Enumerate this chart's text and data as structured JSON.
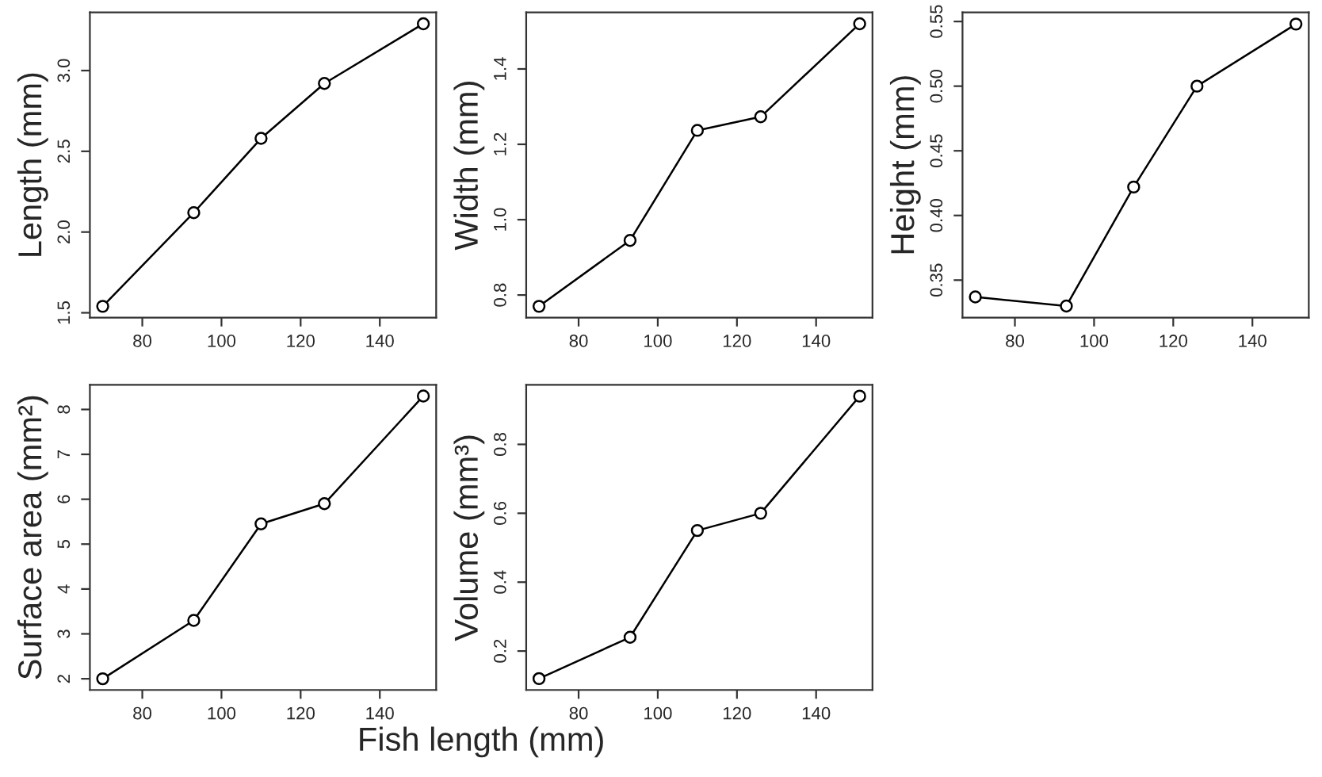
{
  "chart_data": [
    {
      "type": "line",
      "ylabel": "Length (mm)",
      "x": [
        70,
        93,
        110,
        126,
        151
      ],
      "series": [
        {
          "color": "#000000",
          "values": [
            1.54,
            2.12,
            2.58,
            2.92,
            3.29
          ]
        }
      ],
      "xlim": [
        66.76,
        154.24
      ],
      "ylim": [
        1.47,
        3.36
      ],
      "xticks": [
        80,
        100,
        120,
        140
      ],
      "yticks": [
        1.5,
        {
          "value": 2,
          "label": "2.0"
        },
        2.5,
        {
          "value": 3,
          "label": "3.0"
        }
      ],
      "marker": "circle",
      "line_style": "solid",
      "grid": false,
      "legend": false
    },
    {
      "type": "line",
      "ylabel": "Width (mm)",
      "x": [
        70,
        93,
        110,
        126,
        151
      ],
      "series": [
        {
          "color": "#000000",
          "values": [
            0.77,
            0.945,
            1.237,
            1.273,
            1.52
          ]
        }
      ],
      "xlim": [
        66.76,
        154.24
      ],
      "ylim": [
        0.74,
        1.55
      ],
      "xticks": [
        80,
        100,
        120,
        140
      ],
      "yticks": [
        0.8,
        {
          "value": 1,
          "label": "1.0"
        },
        1.2,
        1.4
      ],
      "marker": "circle",
      "line_style": "solid",
      "grid": false,
      "legend": false
    },
    {
      "type": "line",
      "ylabel": "Height (mm)",
      "x": [
        70,
        93,
        110,
        126,
        151
      ],
      "series": [
        {
          "color": "#000000",
          "values": [
            0.337,
            0.33,
            0.422,
            0.5,
            0.548
          ]
        }
      ],
      "xlim": [
        66.76,
        154.24
      ],
      "ylim": [
        0.321,
        0.557
      ],
      "xticks": [
        80,
        100,
        120,
        140
      ],
      "yticks": [
        0.35,
        {
          "value": 0.4,
          "label": "0.40"
        },
        0.45,
        {
          "value": 0.5,
          "label": "0.50"
        },
        0.55
      ],
      "marker": "circle",
      "line_style": "solid",
      "grid": false,
      "legend": false
    },
    {
      "type": "line",
      "ylabel": "Surface area (mm²)",
      "x": [
        70,
        93,
        110,
        126,
        151
      ],
      "series": [
        {
          "color": "#000000",
          "values": [
            2.0,
            3.3,
            5.45,
            5.9,
            8.3
          ]
        }
      ],
      "xlim": [
        66.76,
        154.24
      ],
      "ylim": [
        1.75,
        8.55
      ],
      "xticks": [
        80,
        100,
        120,
        140
      ],
      "yticks": [
        2,
        3,
        4,
        5,
        6,
        7,
        8
      ],
      "marker": "circle",
      "line_style": "solid",
      "grid": false,
      "legend": false
    },
    {
      "type": "line",
      "ylabel": "Volume (mm³)",
      "xlabel": "Fish length (mm)",
      "x": [
        70,
        93,
        110,
        126,
        151
      ],
      "series": [
        {
          "color": "#000000",
          "values": [
            0.12,
            0.24,
            0.55,
            0.6,
            0.94
          ]
        }
      ],
      "xlim": [
        66.76,
        154.24
      ],
      "ylim": [
        0.087,
        0.973
      ],
      "xticks": [
        80,
        100,
        120,
        140
      ],
      "yticks": [
        0.2,
        0.4,
        0.6,
        0.8
      ],
      "marker": "circle",
      "line_style": "solid",
      "grid": false,
      "legend": false
    }
  ]
}
